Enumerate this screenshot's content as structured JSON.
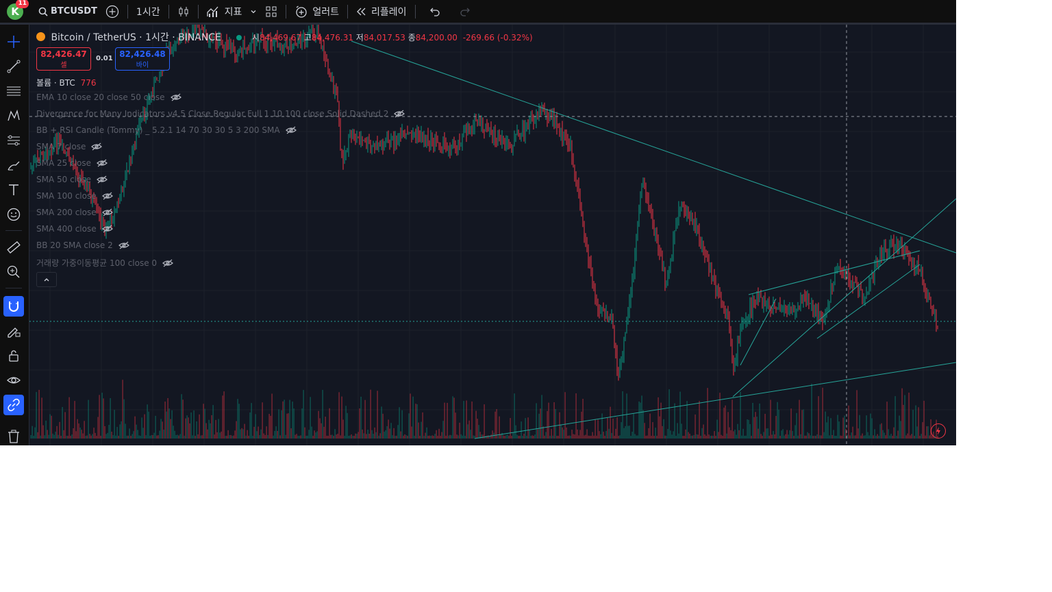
{
  "topbar": {
    "avatar_letter": "K",
    "notification_count": "11",
    "symbol": "BTCUSDT",
    "interval": "1시간",
    "indicators_label": "지표",
    "alert_label": "얼러트",
    "replay_label": "리플레이"
  },
  "legend": {
    "title": "Bitcoin / TetherUS · 1시간 · BINANCE",
    "o_label": "시",
    "o": "84,469.67",
    "h_label": "고",
    "h": "84,476.31",
    "l_label": "저",
    "l": "84,017.53",
    "c_label": "종",
    "c": "84,200.00",
    "change": "-269.66 (-0.32%)"
  },
  "trade": {
    "sell_price": "82,426.47",
    "sell_label": "셀",
    "spread": "0.01",
    "buy_price": "82,426.48",
    "buy_label": "바이"
  },
  "volume": {
    "label": "볼륨 · BTC",
    "value": "776"
  },
  "indicators": [
    "EMA 10 close 20 close 50 close",
    "Divergence for Many Indicators v4 5 Close Regular Full 1 10 100 close Solid Dashed 2",
    "BB + RSI Candle (Tommy) _ 5.2.1 14 70 30 30 5 3 200 SMA",
    "SMA 7 close",
    "SMA 25 close",
    "SMA 50 close",
    "SMA 100 close",
    "SMA 200 close",
    "SMA 400 close",
    "BB 20 SMA close 2",
    "거래량 가중이동평균 100 close 0"
  ],
  "colors": {
    "up": "#089981",
    "down": "#f23645",
    "trend": "#26a69a",
    "accent": "#2962ff",
    "bg": "#131722"
  },
  "chart_data": {
    "type": "candlestick",
    "symbol": "BTCUSDT",
    "interval": "1h",
    "last_close": 84200.0
  }
}
